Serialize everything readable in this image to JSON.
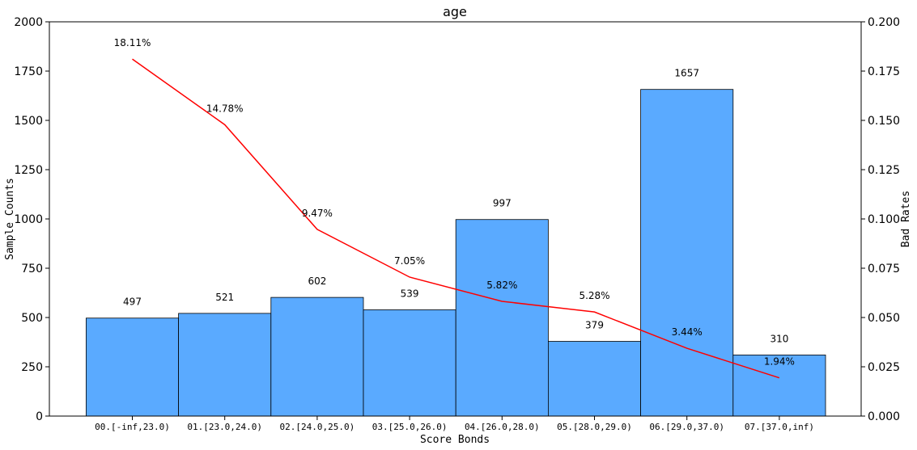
{
  "chart_data": {
    "type": "bar",
    "title": "age",
    "xlabel": "Score Bonds",
    "ylabel": "Sample Counts",
    "y2label": "Bad Rates",
    "ylim": [
      0,
      2000
    ],
    "y2lim": [
      0,
      0.2
    ],
    "yticks": [
      "0",
      "250",
      "500",
      "750",
      "1000",
      "1250",
      "1500",
      "1750",
      "2000"
    ],
    "y2ticks": [
      "0.000",
      "0.025",
      "0.050",
      "0.075",
      "0.100",
      "0.125",
      "0.150",
      "0.175",
      "0.200"
    ],
    "categories": [
      "00.[-inf,23.0)",
      "01.[23.0,24.0)",
      "02.[24.0,25.0)",
      "03.[25.0,26.0)",
      "04.[26.0,28.0)",
      "05.[28.0,29.0)",
      "06.[29.0,37.0)",
      "07.[37.0,inf)"
    ],
    "series": [
      {
        "kind": "bar",
        "axis": "left",
        "values": [
          497,
          521,
          602,
          539,
          997,
          379,
          1657,
          310
        ],
        "labels": [
          "497",
          "521",
          "602",
          "539",
          "997",
          "379",
          "1657",
          "310"
        ],
        "color": "#5aaaff"
      },
      {
        "kind": "line",
        "axis": "right",
        "values": [
          0.1811,
          0.1478,
          0.0947,
          0.0705,
          0.0582,
          0.0528,
          0.0344,
          0.0194
        ],
        "labels": [
          "18.11%",
          "14.78%",
          "9.47%",
          "7.05%",
          "5.82%",
          "5.28%",
          "3.44%",
          "1.94%"
        ],
        "color": "#ff0000"
      }
    ],
    "grid": false
  }
}
